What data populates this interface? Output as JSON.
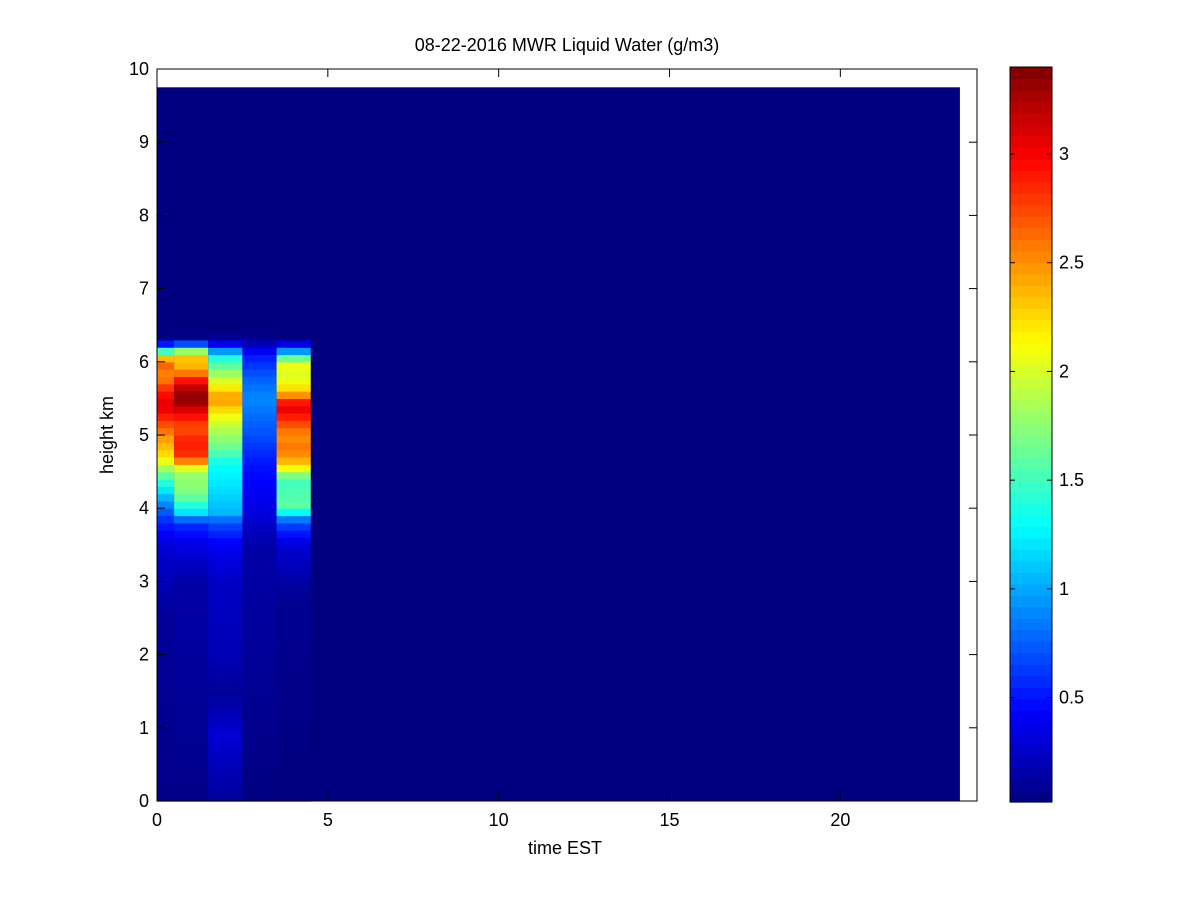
{
  "chart_data": {
    "type": "heatmap",
    "title": "08-22-2016 MWR Liquid Water (g/m3)",
    "xlabel": "time EST",
    "ylabel": "height km",
    "xlim": [
      0,
      24
    ],
    "ylim": [
      0,
      10
    ],
    "x_ticks": [
      0,
      5,
      10,
      15,
      20
    ],
    "y_ticks": [
      0,
      1,
      2,
      3,
      4,
      5,
      6,
      7,
      8,
      9,
      10
    ],
    "colormap": "jet",
    "color_range": [
      0.02,
      3.4
    ],
    "colorbar_ticks": [
      0.5,
      1,
      1.5,
      2,
      2.5,
      3
    ],
    "grid": false,
    "background_value": 0.02,
    "data_extent": {
      "x": [
        0,
        23.5
      ],
      "y": [
        0,
        9.75
      ]
    },
    "time_bins": [
      {
        "x_start": 0.0,
        "x_end": 0.5,
        "profile": [
          [
            0.0,
            0.05
          ],
          [
            2.5,
            0.1
          ],
          [
            3.5,
            0.3
          ],
          [
            3.8,
            0.55
          ],
          [
            4.0,
            0.8
          ],
          [
            4.3,
            1.3
          ],
          [
            4.5,
            1.7
          ],
          [
            4.7,
            2.2
          ],
          [
            5.0,
            2.5
          ],
          [
            5.2,
            2.8
          ],
          [
            5.4,
            3.1
          ],
          [
            5.6,
            2.9
          ],
          [
            5.8,
            2.5
          ],
          [
            6.0,
            2.7
          ],
          [
            6.1,
            2.0
          ],
          [
            6.2,
            1.0
          ],
          [
            6.3,
            0.02
          ]
        ]
      },
      {
        "x_start": 0.5,
        "x_end": 1.5,
        "profile": [
          [
            0.0,
            0.05
          ],
          [
            3.0,
            0.15
          ],
          [
            3.5,
            0.35
          ],
          [
            3.8,
            0.6
          ],
          [
            3.95,
            1.2
          ],
          [
            4.2,
            1.7
          ],
          [
            4.5,
            1.8
          ],
          [
            4.7,
            2.8
          ],
          [
            4.9,
            2.9
          ],
          [
            5.1,
            2.7
          ],
          [
            5.3,
            3.0
          ],
          [
            5.5,
            3.4
          ],
          [
            5.7,
            3.1
          ],
          [
            5.9,
            2.4
          ],
          [
            6.1,
            2.3
          ],
          [
            6.2,
            1.3
          ],
          [
            6.3,
            0.1
          ],
          [
            6.4,
            0.02
          ]
        ]
      },
      {
        "x_start": 1.5,
        "x_end": 2.5,
        "profile": [
          [
            0.0,
            0.1
          ],
          [
            0.2,
            0.15
          ],
          [
            0.9,
            0.3
          ],
          [
            1.5,
            0.1
          ],
          [
            2.0,
            0.2
          ],
          [
            3.0,
            0.25
          ],
          [
            3.5,
            0.4
          ],
          [
            3.8,
            0.7
          ],
          [
            3.95,
            1.05
          ],
          [
            4.3,
            1.2
          ],
          [
            4.6,
            1.3
          ],
          [
            4.8,
            1.6
          ],
          [
            5.0,
            1.8
          ],
          [
            5.2,
            2.0
          ],
          [
            5.5,
            2.5
          ],
          [
            5.7,
            2.1
          ],
          [
            5.9,
            1.7
          ],
          [
            6.1,
            1.3
          ],
          [
            6.2,
            0.6
          ],
          [
            6.3,
            0.15
          ],
          [
            6.4,
            0.02
          ]
        ]
      },
      {
        "x_start": 2.5,
        "x_end": 3.5,
        "profile": [
          [
            0.0,
            0.03
          ],
          [
            3.5,
            0.15
          ],
          [
            4.0,
            0.35
          ],
          [
            4.6,
            0.5
          ],
          [
            5.0,
            0.7
          ],
          [
            5.5,
            0.9
          ],
          [
            5.8,
            0.75
          ],
          [
            6.1,
            0.5
          ],
          [
            6.3,
            0.1
          ],
          [
            6.4,
            0.02
          ]
        ]
      },
      {
        "x_start": 3.5,
        "x_end": 4.5,
        "profile": [
          [
            0.0,
            0.02
          ],
          [
            2.8,
            0.08
          ],
          [
            3.0,
            0.15
          ],
          [
            3.5,
            0.3
          ],
          [
            3.8,
            0.7
          ],
          [
            3.9,
            1.0
          ],
          [
            4.0,
            1.6
          ],
          [
            4.4,
            1.5
          ],
          [
            4.6,
            2.3
          ],
          [
            4.8,
            2.6
          ],
          [
            5.0,
            2.5
          ],
          [
            5.2,
            2.8
          ],
          [
            5.4,
            3.1
          ],
          [
            5.6,
            2.3
          ],
          [
            5.8,
            2.0
          ],
          [
            6.0,
            2.1
          ],
          [
            6.1,
            1.2
          ],
          [
            6.2,
            0.7
          ],
          [
            6.3,
            0.02
          ]
        ]
      }
    ]
  }
}
